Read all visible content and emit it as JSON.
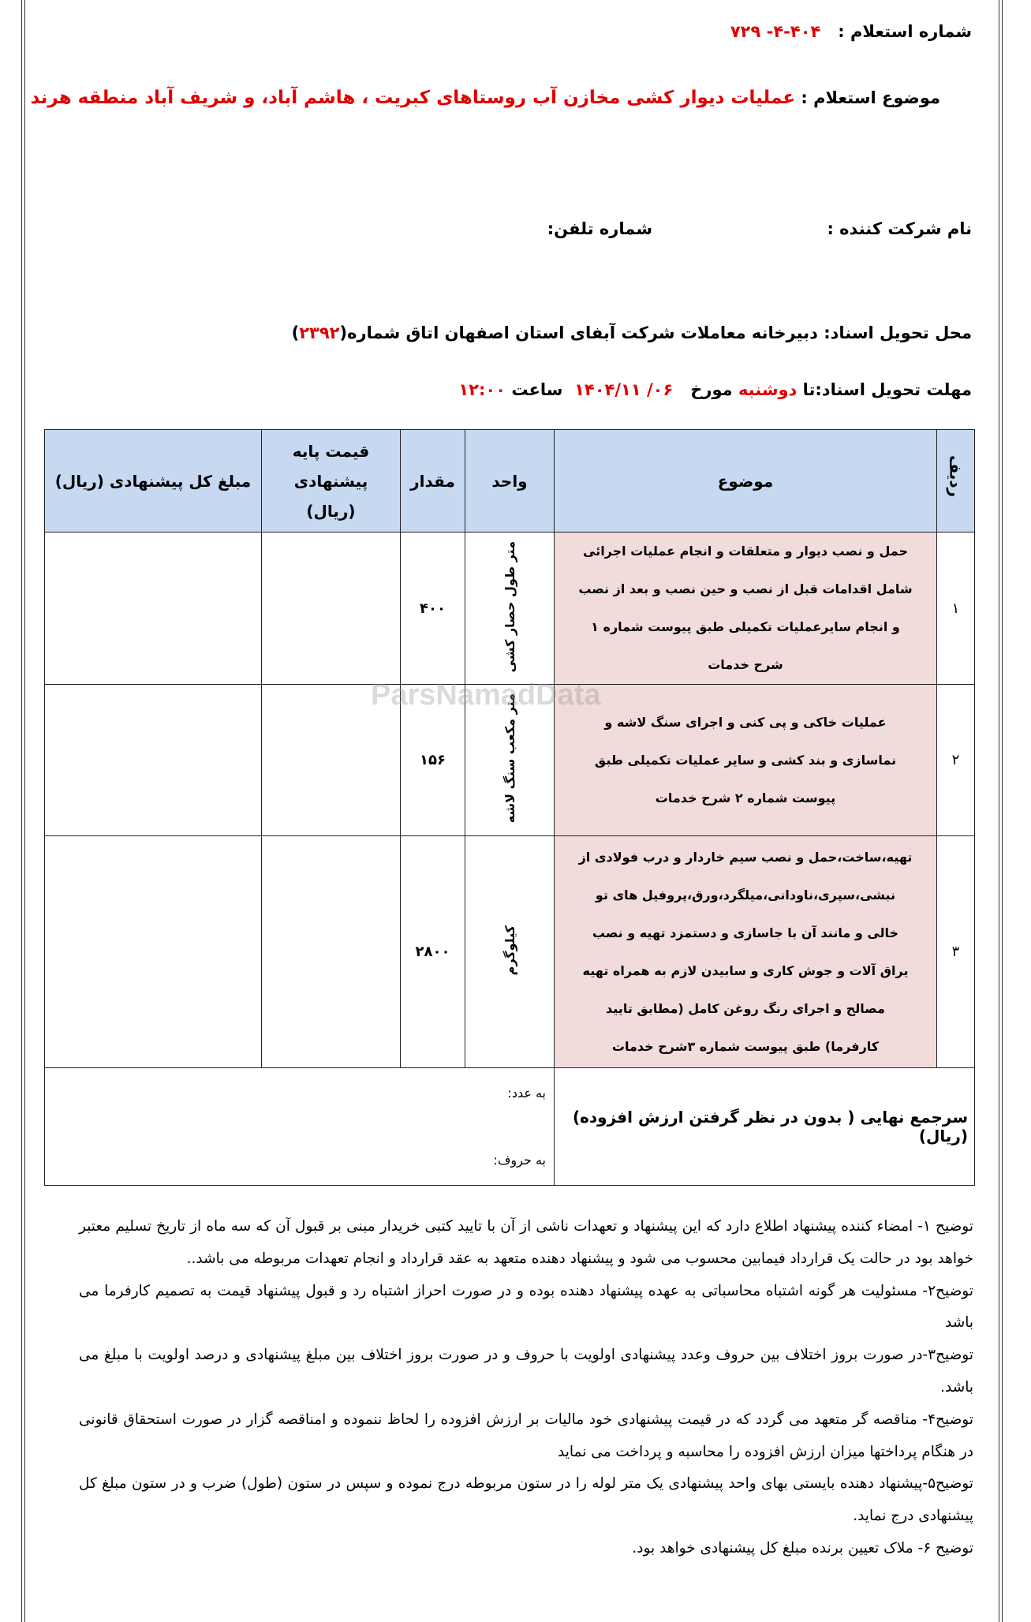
{
  "header": {
    "inquiry_number_label": "شماره استعلام  :",
    "inquiry_number": "۴۰۴-۴- ۷۲۹",
    "subject_label": "موضوع استعلام :",
    "subject": "عملیات دیوار کشی مخازن آب روستاهای کبریت ، هاشم آباد، و شریف آباد منطقه هرند",
    "company_label": "نام شرکت کننده :",
    "phone_label": "شماره تلفن:",
    "delivery_place_label": "محل تحویل اسناد:",
    "delivery_place": "دبیرخانه معاملات شرکت آبفای استان اصفهان اتاق شماره(",
    "delivery_room": "۲۳۹۲",
    "delivery_place_close": ")",
    "deadline_label": "مهلت تحویل اسناد:تا",
    "deadline_day": "دوشنبه",
    "deadline_dated": "مورخ",
    "deadline_date": "۰۶/ ۱۴۰۴/۱۱",
    "deadline_hour_label": "ساعت",
    "deadline_time": "۱۲:۰۰"
  },
  "table": {
    "columns": [
      "ردیف",
      "موضوع",
      "واحد",
      "مقدار",
      "قیمت پایه پیشنهادی (ریال)",
      "مبلغ کل پیشنهادی (ریال)"
    ],
    "rows": [
      {
        "index": "۱",
        "subject": "حمل و نصب دیوار و متعلقات و انجام عملیات اجرائی شامل اقدامات قبل از نصب و حین نصب و بعد از نصب و انجام سایرعملیات تکمیلی طبق پیوست شماره ۱ شرح خدمات",
        "unit": "متر طول حصار کشی",
        "quantity": "۴۰۰",
        "unit_price": "",
        "total": ""
      },
      {
        "index": "۲",
        "subject": "عملیات خاکی و پی کنی و اجرای سنگ لاشه و نماسازی و بند کشی و سایر عملیات تکمیلی طبق پیوست شماره ۲ شرح خدمات",
        "unit": "متر مکعب سنگ لاشه",
        "quantity": "۱۵۶",
        "unit_price": "",
        "total": ""
      },
      {
        "index": "۳",
        "subject": "تهیه،ساخت،حمل و نصب سیم خاردار و درب فولادی از نبشی،سپری،ناودانی،میلگرد،ورق،پروفیل های تو خالی و مانند آن با جاسازی و دستمزد تهیه و نصب یراق آلات و جوش کاری و سابیدن لازم به همراه تهیه مصالح و اجرای رنگ روغن کامل (مطابق تایید کارفرما) طبق پیوست شماره ۳شرح خدمات",
        "unit": "کیلوگرم",
        "quantity": "۲۸۰۰",
        "unit_price": "",
        "total": ""
      }
    ],
    "grand_total_label": "سرجمع نهایی ( بدون در نظر گرفتن  ارزش افزوده) (ریال)",
    "in_numbers_label": "به عدد:",
    "in_words_label": "به حروف:"
  },
  "notes": [
    "توضیح ۱- امضاء کننده پیشنهاد اطلاع دارد که این پیشنهاد و تعهدات ناشی از آن با تایید کتبی خریدار مبنی بر قبول آن که سه  ماه از تاریخ تسلیم معتبر خواهد بود در حالت یک قرارداد فیمابین محسوب می شود و پیشنهاد دهنده متعهد به عقد قرارداد و انجام تعهدات مربوطه می باشد..",
    "توضیح۲- مسئولیت هر گونه اشتباه محاسباتی به عهده پیشنهاد دهنده بوده و در صورت احراز اشتباه رد و قبول پیشنهاد قیمت به تصمیم کارفرما می باشد",
    "توضیح۳-در صورت بروز اختلاف بین حروف وعدد پیشنهادی اولویت با حروف و در صورت بروز اختلاف بین مبلغ پیشنهادی و درصد اولویت با مبلغ می باشد.",
    "توضیح۴- مناقصه گر متعهد می گردد که در قیمت پیشنهادی خود  مالیات بر ارزش افزوده را لحاظ ننموده و امناقصه گزار در صورت استحقاق قانونی در هنگام پرداختها  میزان ارزش افزوده را محاسبه و پرداخت می نماید",
    "توضیح۵-پیشنهاد دهنده بایستی بهای واحد پیشنهادی یک متر لوله  را در ستون مربوطه درج نموده و سپس در ستون (طول) ضرب و در ستون مبلغ کل پیشنهادی درج نماید.",
    "توضیح ۶- ملاک تعیین برنده مبلغ کل پیشنهادی خواهد بود."
  ],
  "watermark": "ParsNamadData",
  "colors": {
    "accent_red": "#e00000",
    "header_bg": "#c6d9f0",
    "subject_bg": "#f2dcdb"
  }
}
